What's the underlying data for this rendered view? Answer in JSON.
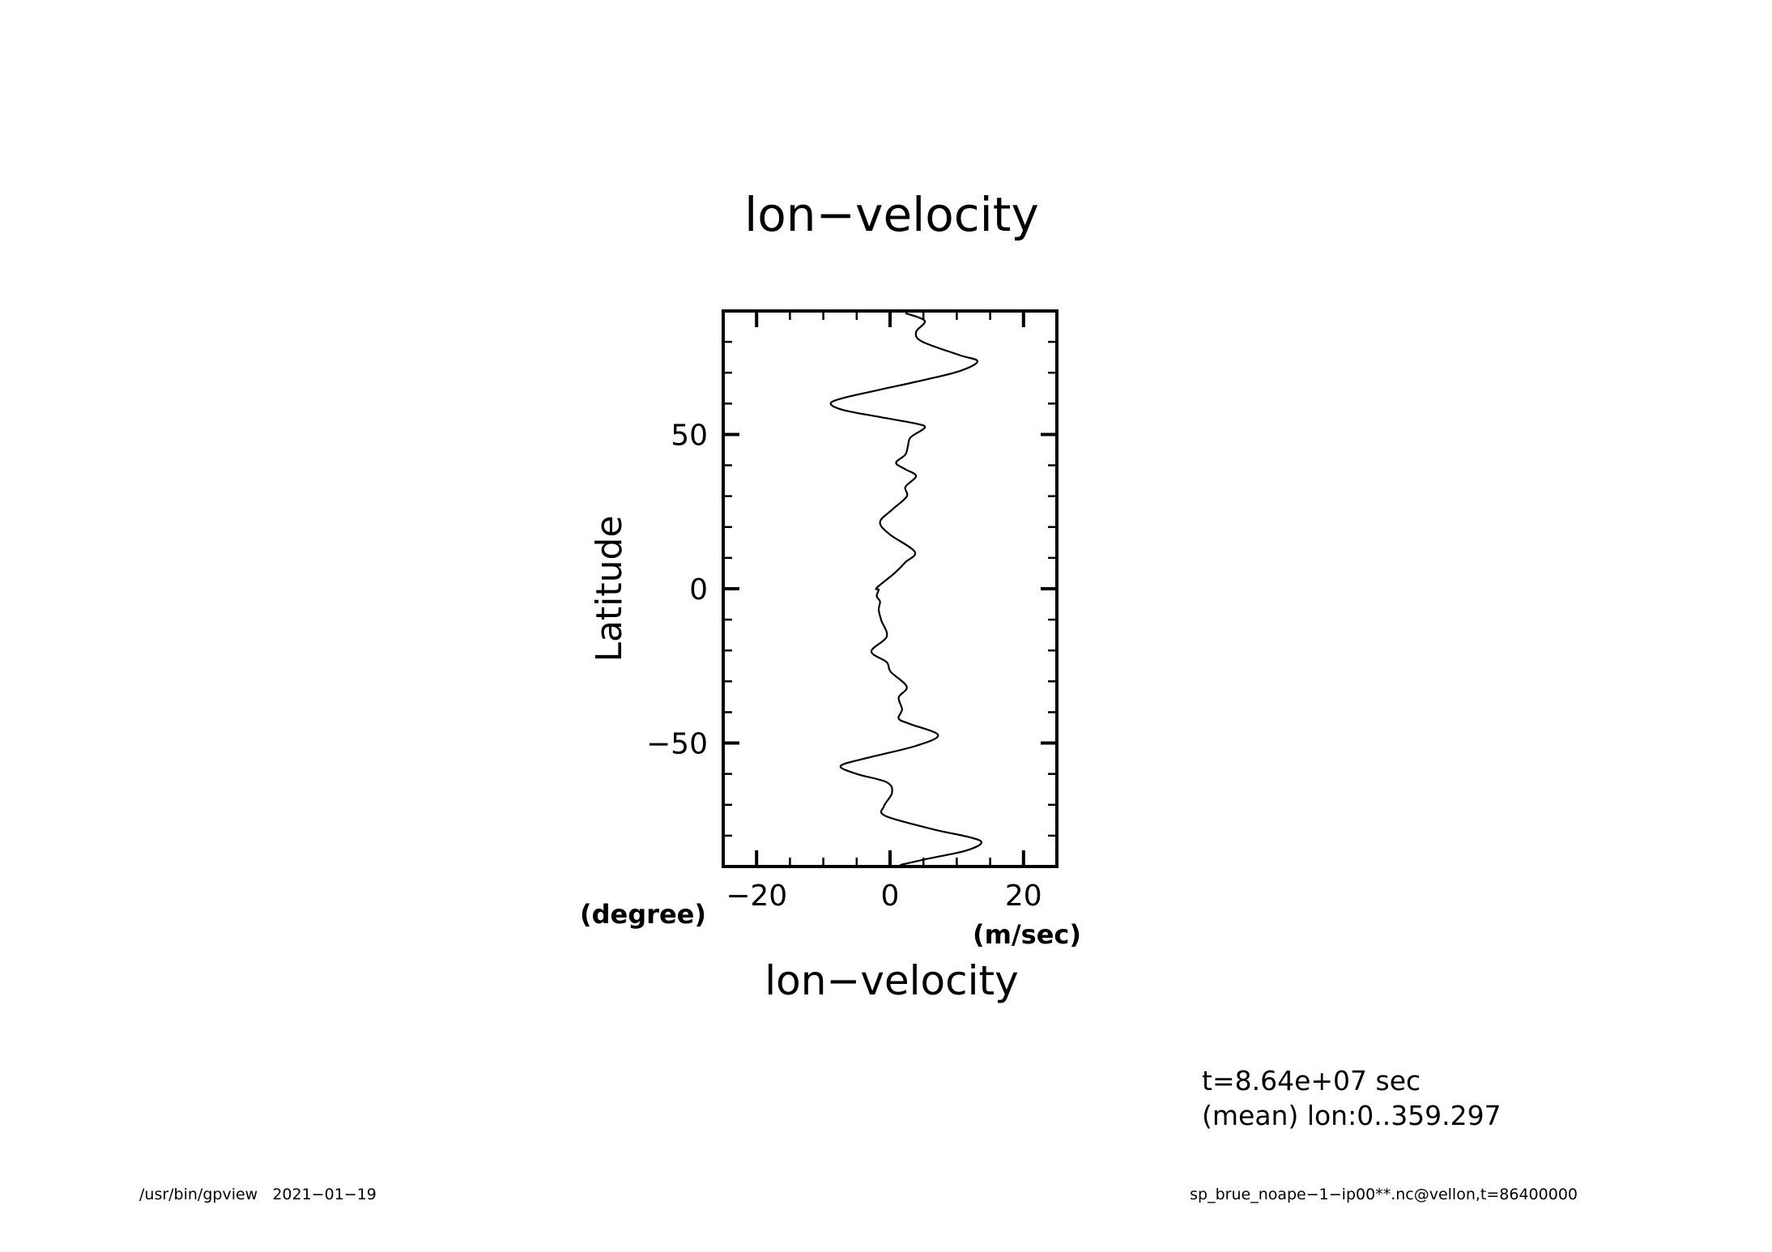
{
  "chart_data": {
    "type": "line",
    "title": "lon−velocity",
    "xlabel": "lon−velocity",
    "xunits": "(m/sec)",
    "ylabel": "Latitude",
    "yunits": "(degree)",
    "xlim": [
      -25,
      25
    ],
    "ylim": [
      -90,
      90
    ],
    "xticks": [
      -20,
      0,
      20
    ],
    "xtick_labels": [
      "−20",
      "0",
      "20"
    ],
    "xminor_step": 5,
    "yticks": [
      -50,
      0,
      50
    ],
    "ytick_labels": [
      "−50",
      "0",
      "50"
    ],
    "yminor_step": 10,
    "grid": false,
    "series": [
      {
        "name": "lon-velocity",
        "color": "#000000",
        "points": [
          [
            1.5,
            -89.5
          ],
          [
            5.6,
            -87.5
          ],
          [
            11.3,
            -84.9
          ],
          [
            13.7,
            -82.3
          ],
          [
            11.9,
            -80.5
          ],
          [
            6.4,
            -77.9
          ],
          [
            -0.7,
            -73.6
          ],
          [
            -0.9,
            -70.4
          ],
          [
            0.3,
            -66.1
          ],
          [
            -0.5,
            -62.7
          ],
          [
            -5.0,
            -60.0
          ],
          [
            -7.4,
            -57.4
          ],
          [
            -3.4,
            -54.8
          ],
          [
            3.9,
            -50.9
          ],
          [
            7.2,
            -47.4
          ],
          [
            3.1,
            -43.9
          ],
          [
            1.3,
            -42.1
          ],
          [
            1.8,
            -39.1
          ],
          [
            1.3,
            -35.2
          ],
          [
            2.5,
            -31.7
          ],
          [
            0.1,
            -26.9
          ],
          [
            -0.5,
            -23.8
          ],
          [
            -2.8,
            -20.3
          ],
          [
            -0.5,
            -15.5
          ],
          [
            -1.3,
            -10.3
          ],
          [
            -1.7,
            -6.8
          ],
          [
            -1.5,
            -4.2
          ],
          [
            -2.0,
            -2.4
          ],
          [
            -1.7,
            -0.3
          ],
          [
            -2.0,
            0.3
          ],
          [
            0.7,
            5.1
          ],
          [
            2.3,
            8.6
          ],
          [
            3.7,
            12.0
          ],
          [
            -0.1,
            17.7
          ],
          [
            -1.5,
            21.6
          ],
          [
            0.3,
            25.6
          ],
          [
            2.5,
            29.9
          ],
          [
            2.3,
            33.0
          ],
          [
            3.9,
            36.5
          ],
          [
            2.3,
            38.7
          ],
          [
            0.9,
            40.8
          ],
          [
            2.3,
            43.5
          ],
          [
            2.7,
            46.5
          ],
          [
            3.1,
            49.1
          ],
          [
            5.2,
            52.2
          ],
          [
            3.9,
            53.5
          ],
          [
            -1.7,
            55.7
          ],
          [
            -7.0,
            57.9
          ],
          [
            -8.9,
            60.0
          ],
          [
            -7.0,
            61.8
          ],
          [
            -1.7,
            64.4
          ],
          [
            4.8,
            67.5
          ],
          [
            10.4,
            70.5
          ],
          [
            13.1,
            73.7
          ],
          [
            10.4,
            75.7
          ],
          [
            4.8,
            80.1
          ],
          [
            3.9,
            83.2
          ],
          [
            5.2,
            86.8
          ],
          [
            2.3,
            89.3
          ]
        ]
      }
    ]
  },
  "info": {
    "time": "t=8.64e+07 sec",
    "mean": "(mean) lon:0..359.297"
  },
  "footer": {
    "left": "/usr/bin/gpview   2021−01−19",
    "right": "sp_brue_noape−1−ip00**.nc@vellon,t=86400000"
  }
}
